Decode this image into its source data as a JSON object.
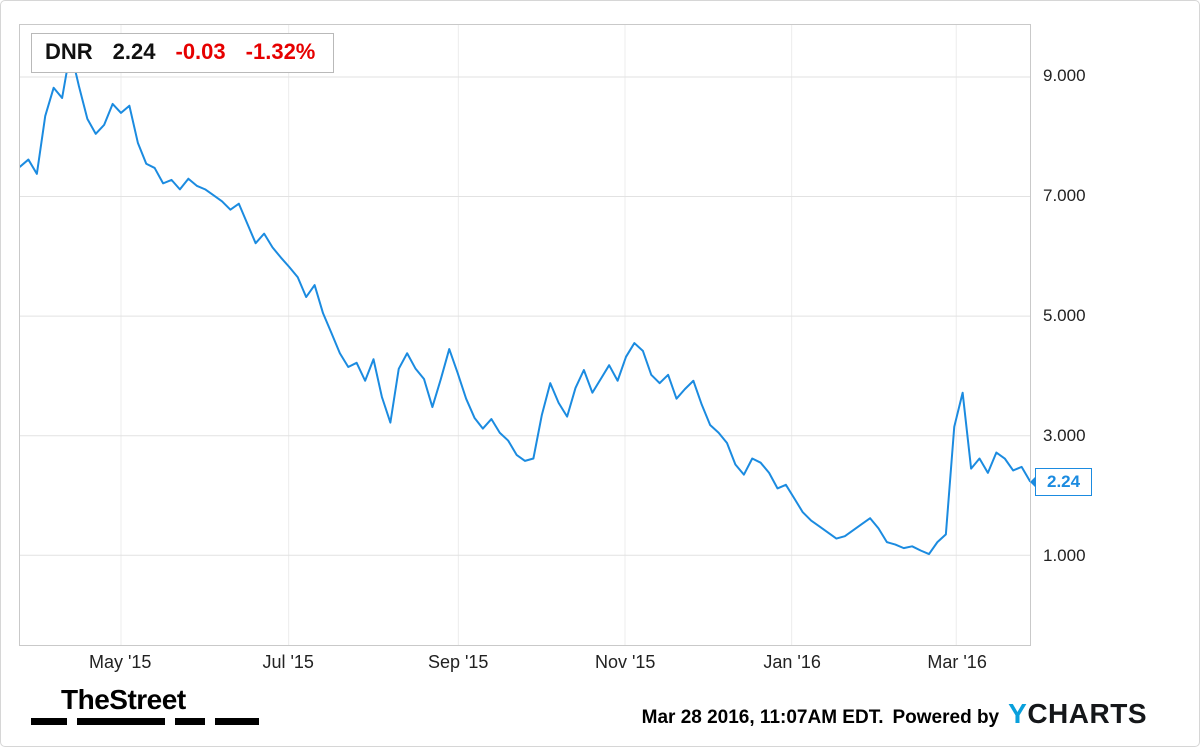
{
  "legend": {
    "symbol": "DNR",
    "price": "2.24",
    "change": "-0.03",
    "change_pct": "-1.32%"
  },
  "price_callout": "2.24",
  "footer": {
    "brand": "TheStreet",
    "timestamp": "Mar 28 2016, 11:07AM EDT.",
    "powered_by": "Powered by",
    "provider_y": "Y",
    "provider_rest": "CHARTS"
  },
  "colors": {
    "line": "#1b8be0",
    "negative": "#e60000",
    "grid": "#e2e2e2",
    "grid_vertical": "#ececec",
    "provider_blue": "#09a0dc",
    "axis_text": "#222222"
  },
  "chart_data": {
    "type": "line",
    "title": "DNR",
    "xlabel": "",
    "ylabel": "",
    "legend_position": "top-left",
    "grid": true,
    "ylim": [
      -0.5,
      9.87
    ],
    "y_ticks": [
      {
        "label": "9.000",
        "value": 9
      },
      {
        "label": "7.000",
        "value": 7
      },
      {
        "label": "5.000",
        "value": 5
      },
      {
        "label": "3.000",
        "value": 3
      },
      {
        "label": "1.000",
        "value": 1
      }
    ],
    "x_ticks": [
      {
        "label": "May '15",
        "pos": 0.1
      },
      {
        "label": "Jul '15",
        "pos": 0.266
      },
      {
        "label": "Sep '15",
        "pos": 0.434
      },
      {
        "label": "Nov '15",
        "pos": 0.599
      },
      {
        "label": "Jan '16",
        "pos": 0.764
      },
      {
        "label": "Mar '16",
        "pos": 0.927
      }
    ],
    "x_range": [
      "Apr 2015",
      "Mar 28 2016"
    ],
    "last_value": 2.24,
    "series": [
      {
        "name": "DNR price",
        "values": [
          7.5,
          7.62,
          7.38,
          8.35,
          8.82,
          8.65,
          9.45,
          8.85,
          8.3,
          8.05,
          8.2,
          8.55,
          8.4,
          8.52,
          7.9,
          7.55,
          7.48,
          7.22,
          7.28,
          7.12,
          7.3,
          7.18,
          7.12,
          7.02,
          6.92,
          6.78,
          6.88,
          6.55,
          6.22,
          6.38,
          6.15,
          5.98,
          5.82,
          5.65,
          5.32,
          5.52,
          5.05,
          4.72,
          4.38,
          4.15,
          4.22,
          3.92,
          4.28,
          3.65,
          3.22,
          4.12,
          4.38,
          4.12,
          3.95,
          3.48,
          3.95,
          4.45,
          4.05,
          3.62,
          3.3,
          3.12,
          3.28,
          3.05,
          2.92,
          2.68,
          2.58,
          2.62,
          3.35,
          3.88,
          3.55,
          3.32,
          3.8,
          4.1,
          3.72,
          3.95,
          4.18,
          3.92,
          4.32,
          4.55,
          4.42,
          4.02,
          3.88,
          4.02,
          3.62,
          3.78,
          3.92,
          3.52,
          3.18,
          3.05,
          2.88,
          2.52,
          2.35,
          2.62,
          2.55,
          2.38,
          2.12,
          2.18,
          1.95,
          1.72,
          1.58,
          1.48,
          1.38,
          1.28,
          1.32,
          1.42,
          1.52,
          1.62,
          1.45,
          1.22,
          1.18,
          1.12,
          1.15,
          1.08,
          1.02,
          1.22,
          1.35,
          3.15,
          3.72,
          2.45,
          2.62,
          2.38,
          2.72,
          2.62,
          2.42,
          2.48,
          2.24
        ]
      }
    ]
  }
}
